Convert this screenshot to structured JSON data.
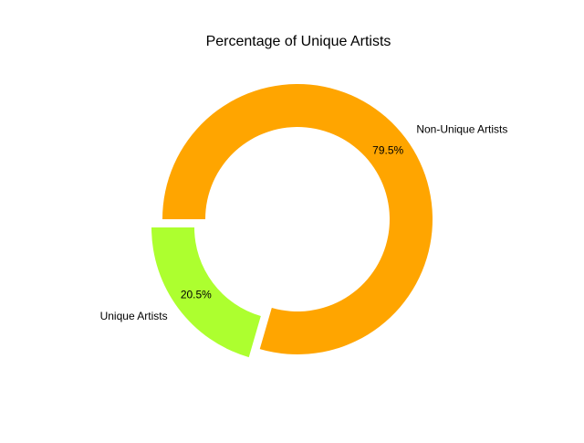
{
  "chart_data": {
    "type": "pie",
    "variant": "donut",
    "title": "Percentage of Unique Artists",
    "slices": [
      {
        "label": "Unique Artists",
        "value": 20.5,
        "pct_label": "20.5%",
        "color": "#adff2f",
        "exploded": true
      },
      {
        "label": "Non-Unique Artists",
        "value": 79.5,
        "pct_label": "79.5%",
        "color": "#ffa500",
        "exploded": false
      }
    ],
    "start_angle_deg": 180,
    "direction": "counterclockwise",
    "legend": "none"
  }
}
